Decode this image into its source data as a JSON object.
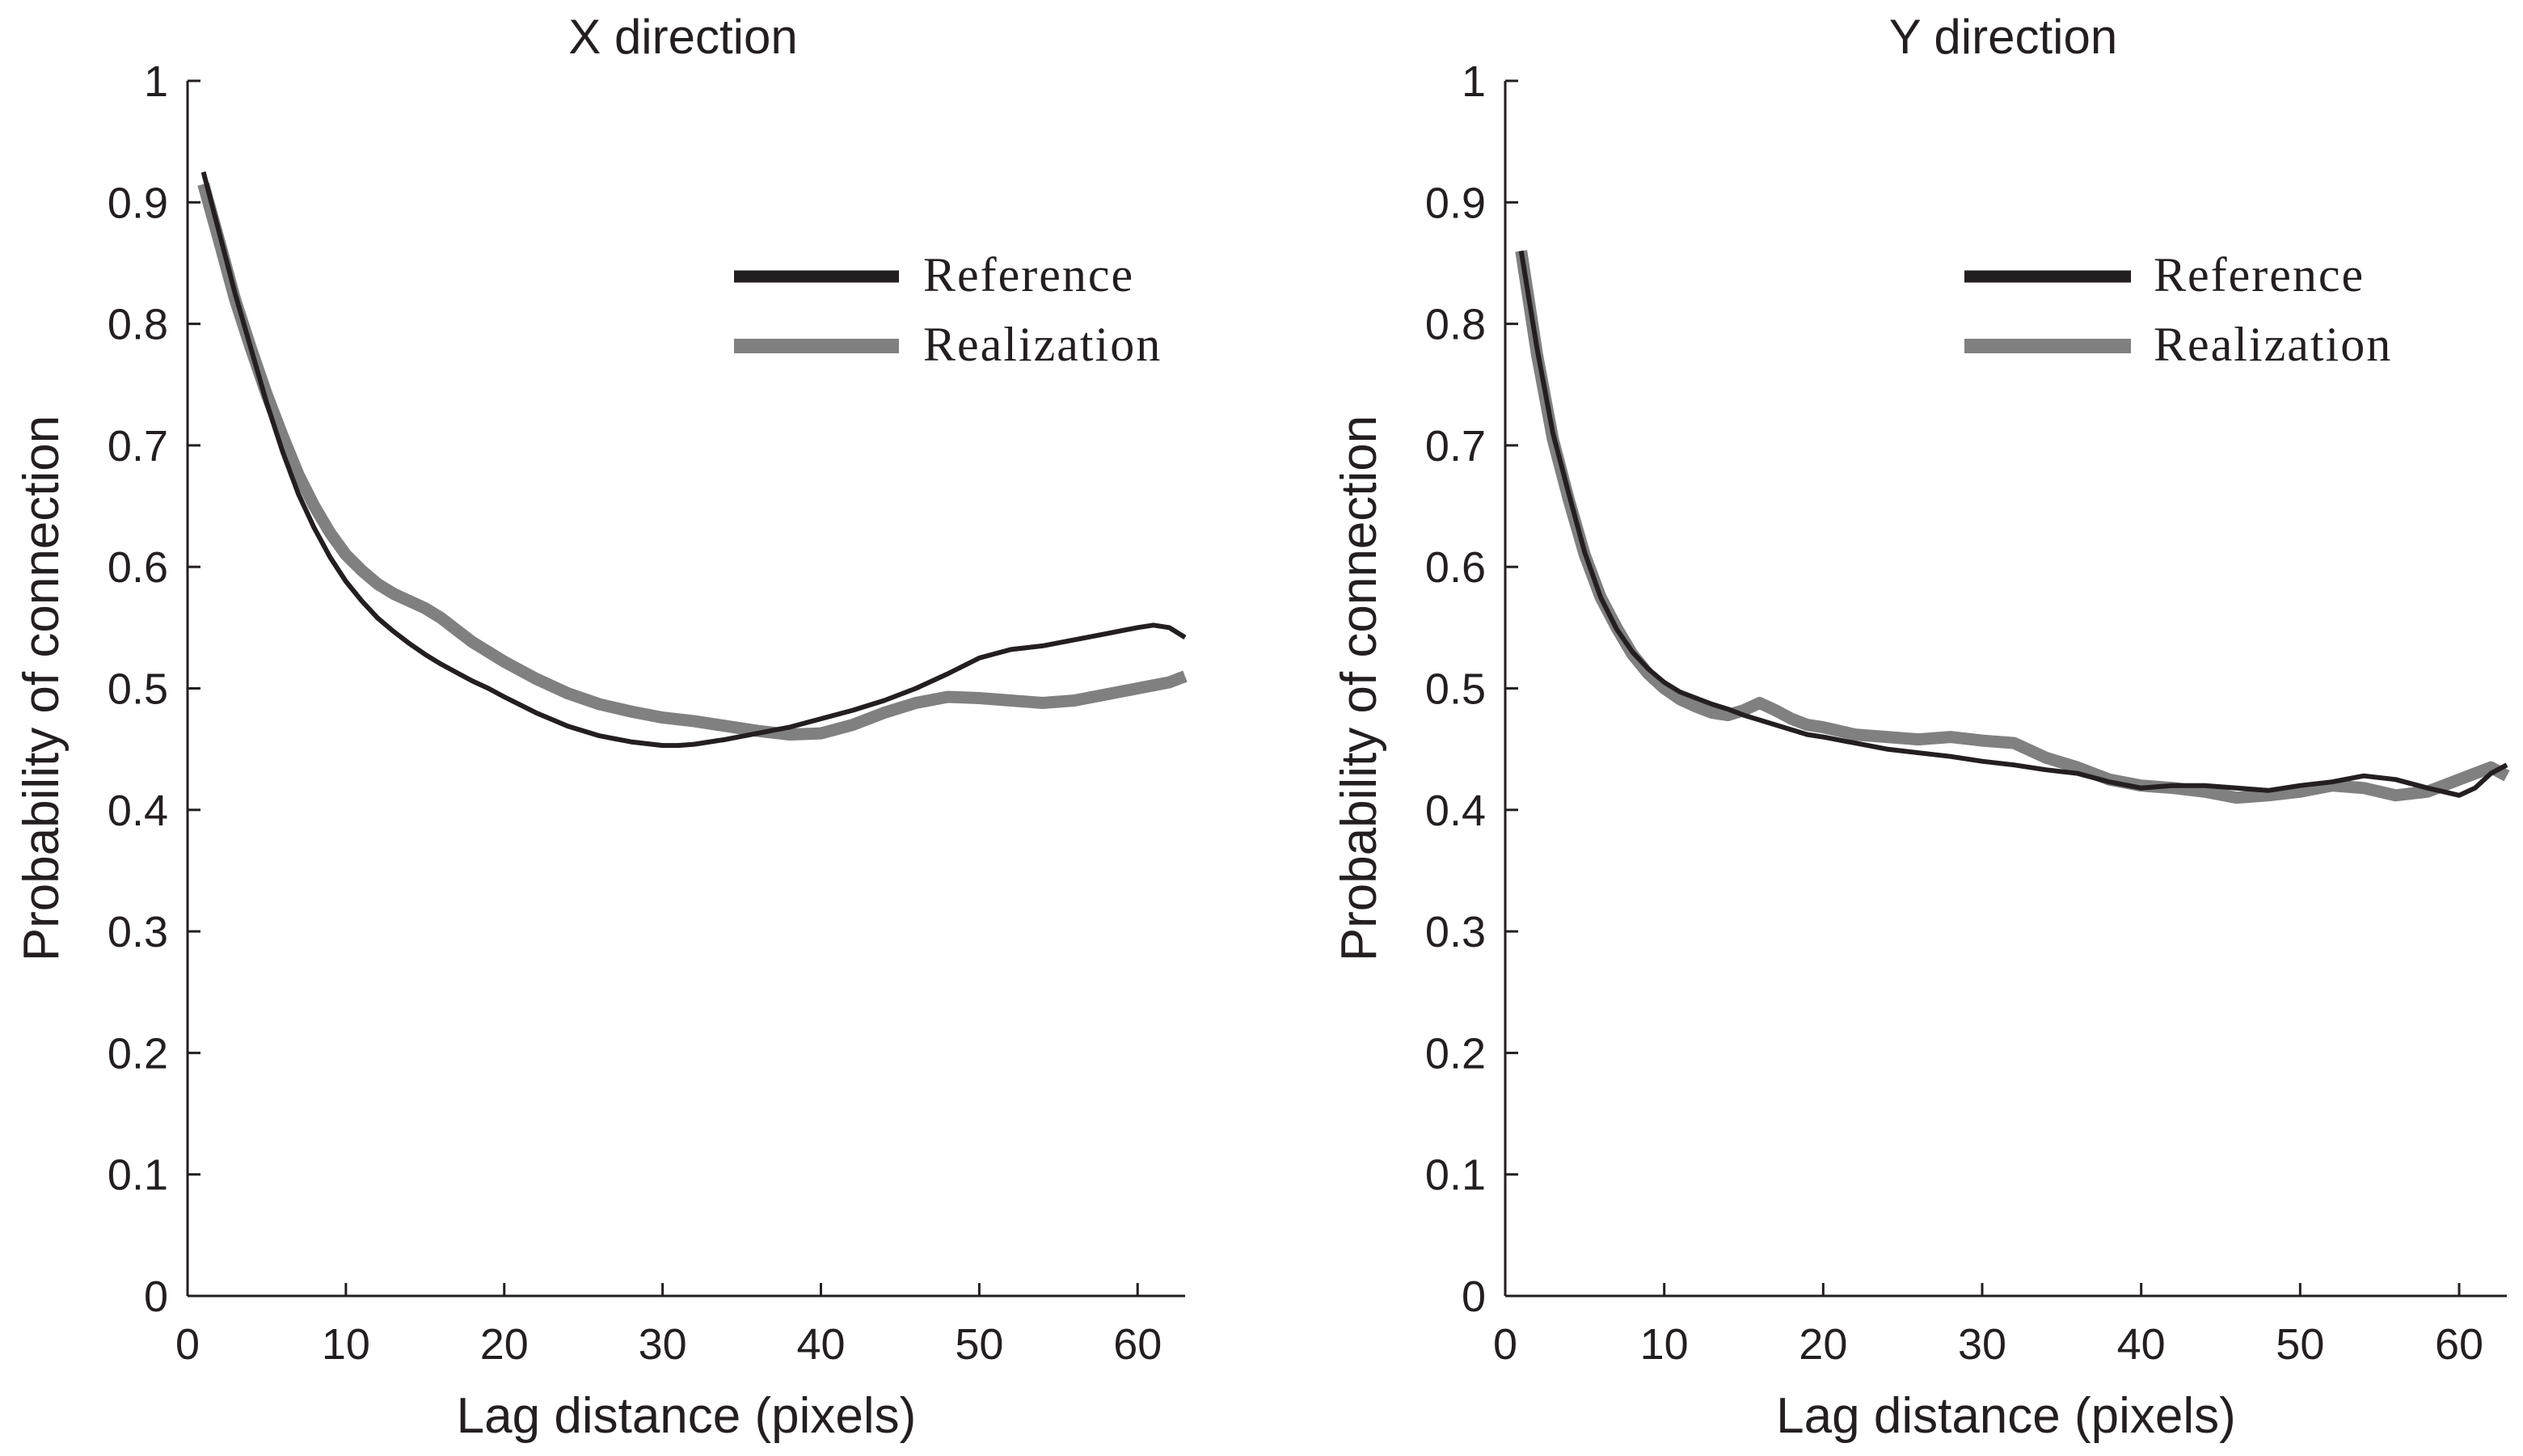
{
  "chart_data": [
    {
      "type": "line",
      "title": "X direction",
      "xlabel": "Lag distance (pixels)",
      "ylabel": "Probability of connection",
      "xlim": [
        0,
        63
      ],
      "ylim": [
        0,
        1
      ],
      "xticks": [
        0,
        10,
        20,
        30,
        40,
        50,
        60
      ],
      "xtick_labels": [
        "0",
        "10",
        "20",
        "30",
        "40",
        "50",
        "60"
      ],
      "yticks": [
        0,
        0.1,
        0.2,
        0.3,
        0.4,
        0.5,
        0.6,
        0.7,
        0.8,
        0.9,
        1
      ],
      "ytick_labels": [
        "0",
        "0.1",
        "0.2",
        "0.3",
        "0.4",
        "0.5",
        "0.6",
        "0.7",
        "0.8",
        "0.9",
        "1"
      ],
      "legend_position": "top-right",
      "series": [
        {
          "name": "Reference",
          "color": "#231f20",
          "x": [
            1,
            2,
            3,
            4,
            5,
            6,
            7,
            8,
            9,
            10,
            11,
            12,
            13,
            14,
            15,
            16,
            17,
            18,
            19,
            20,
            22,
            24,
            26,
            28,
            30,
            31,
            32,
            34,
            36,
            38,
            40,
            42,
            44,
            46,
            48,
            50,
            52,
            54,
            56,
            58,
            60,
            61,
            62,
            63
          ],
          "y": [
            0.925,
            0.875,
            0.825,
            0.78,
            0.735,
            0.695,
            0.66,
            0.632,
            0.608,
            0.588,
            0.572,
            0.558,
            0.547,
            0.537,
            0.528,
            0.52,
            0.513,
            0.506,
            0.5,
            0.493,
            0.48,
            0.469,
            0.461,
            0.456,
            0.453,
            0.453,
            0.454,
            0.458,
            0.463,
            0.468,
            0.475,
            0.482,
            0.49,
            0.5,
            0.512,
            0.525,
            0.532,
            0.535,
            0.54,
            0.545,
            0.55,
            0.552,
            0.55,
            0.542
          ]
        },
        {
          "name": "Realization",
          "color": "#808080",
          "x": [
            1,
            2,
            3,
            4,
            5,
            6,
            7,
            8,
            9,
            10,
            11,
            12,
            13,
            14,
            15,
            16,
            17,
            18,
            19,
            20,
            22,
            24,
            26,
            28,
            30,
            32,
            34,
            36,
            38,
            40,
            42,
            44,
            46,
            48,
            50,
            52,
            54,
            56,
            58,
            60,
            62,
            63
          ],
          "y": [
            0.915,
            0.868,
            0.82,
            0.78,
            0.742,
            0.708,
            0.676,
            0.65,
            0.628,
            0.61,
            0.597,
            0.586,
            0.578,
            0.572,
            0.566,
            0.558,
            0.548,
            0.538,
            0.53,
            0.522,
            0.508,
            0.496,
            0.487,
            0.481,
            0.476,
            0.473,
            0.469,
            0.465,
            0.462,
            0.463,
            0.47,
            0.48,
            0.488,
            0.493,
            0.492,
            0.49,
            0.488,
            0.49,
            0.495,
            0.5,
            0.505,
            0.51
          ]
        }
      ]
    },
    {
      "type": "line",
      "title": "Y direction",
      "xlabel": "Lag distance (pixels)",
      "ylabel": "Probability of connection",
      "xlim": [
        0,
        63
      ],
      "ylim": [
        0,
        1
      ],
      "xticks": [
        0,
        10,
        20,
        30,
        40,
        50,
        60
      ],
      "xtick_labels": [
        "0",
        "10",
        "20",
        "30",
        "40",
        "50",
        "60"
      ],
      "yticks": [
        0,
        0.1,
        0.2,
        0.3,
        0.4,
        0.5,
        0.6,
        0.7,
        0.8,
        0.9,
        1
      ],
      "ytick_labels": [
        "0",
        "0.1",
        "0.2",
        "0.3",
        "0.4",
        "0.5",
        "0.6",
        "0.7",
        "0.8",
        "0.9",
        "1"
      ],
      "legend_position": "top-right",
      "series": [
        {
          "name": "Reference",
          "color": "#231f20",
          "x": [
            1,
            2,
            3,
            4,
            5,
            6,
            7,
            8,
            9,
            10,
            11,
            12,
            13,
            14,
            15,
            16,
            17,
            18,
            19,
            20,
            22,
            24,
            26,
            28,
            30,
            32,
            34,
            36,
            38,
            40,
            42,
            44,
            46,
            48,
            50,
            52,
            54,
            56,
            58,
            60,
            61,
            62,
            63
          ],
          "y": [
            0.86,
            0.78,
            0.71,
            0.66,
            0.612,
            0.575,
            0.549,
            0.53,
            0.516,
            0.505,
            0.497,
            0.492,
            0.487,
            0.483,
            0.478,
            0.474,
            0.47,
            0.466,
            0.462,
            0.46,
            0.455,
            0.45,
            0.447,
            0.444,
            0.44,
            0.437,
            0.433,
            0.43,
            0.423,
            0.418,
            0.42,
            0.42,
            0.418,
            0.416,
            0.42,
            0.423,
            0.428,
            0.425,
            0.418,
            0.412,
            0.418,
            0.43,
            0.437
          ]
        },
        {
          "name": "Realization",
          "color": "#808080",
          "x": [
            1,
            2,
            3,
            4,
            5,
            6,
            7,
            8,
            9,
            10,
            11,
            12,
            13,
            14,
            15,
            16,
            17,
            18,
            19,
            20,
            22,
            24,
            26,
            28,
            30,
            32,
            34,
            36,
            38,
            40,
            42,
            44,
            46,
            48,
            50,
            52,
            54,
            56,
            58,
            60,
            62,
            63
          ],
          "y": [
            0.86,
            0.775,
            0.705,
            0.655,
            0.61,
            0.575,
            0.55,
            0.528,
            0.512,
            0.5,
            0.491,
            0.485,
            0.48,
            0.478,
            0.482,
            0.488,
            0.482,
            0.475,
            0.47,
            0.468,
            0.462,
            0.46,
            0.458,
            0.46,
            0.457,
            0.455,
            0.443,
            0.435,
            0.425,
            0.42,
            0.418,
            0.415,
            0.41,
            0.412,
            0.415,
            0.42,
            0.418,
            0.412,
            0.415,
            0.425,
            0.435,
            0.428
          ]
        }
      ]
    }
  ]
}
